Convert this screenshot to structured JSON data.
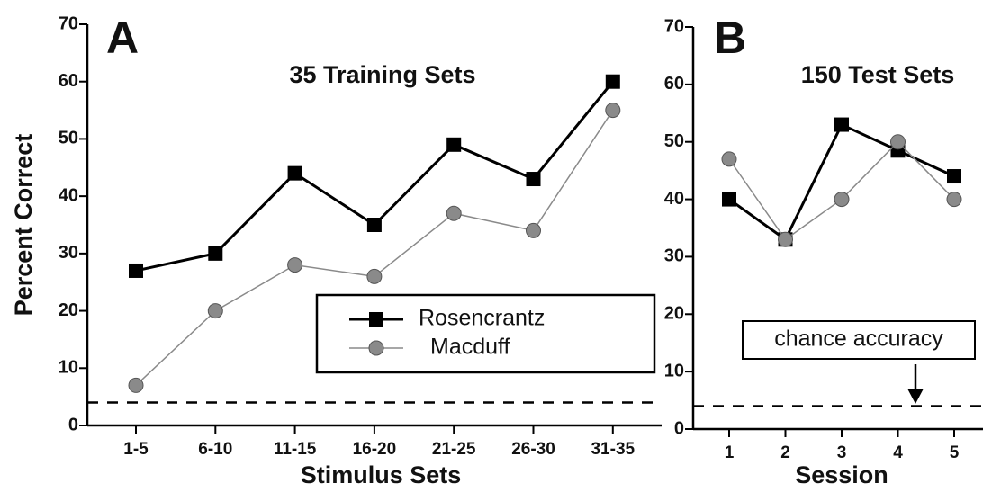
{
  "chart_data": [
    {
      "type": "line",
      "panel": "A",
      "title": "35 Training Sets",
      "ylabel": "Percent Correct",
      "xlabel": "Stimulus Sets",
      "categories": [
        "1-5",
        "6-10",
        "11-15",
        "16-20",
        "21-25",
        "26-30",
        "31-35"
      ],
      "series": [
        {
          "name": "Rosencrantz",
          "color": "#000000",
          "marker": "square",
          "values": [
            27,
            30,
            44,
            35,
            49,
            43,
            60
          ]
        },
        {
          "name": "Macduff",
          "color": "#8a8a8a",
          "marker": "circle",
          "values": [
            7,
            20,
            28,
            26,
            37,
            34,
            55
          ]
        }
      ],
      "ylim": [
        0,
        70
      ],
      "yticks": [
        0,
        10,
        20,
        30,
        40,
        50,
        60,
        70
      ],
      "hline": 4,
      "legend": "lower right"
    },
    {
      "type": "line",
      "panel": "B",
      "title": "150 Test Sets",
      "xlabel": "Session",
      "categories": [
        "1",
        "2",
        "3",
        "4",
        "5"
      ],
      "series": [
        {
          "name": "Rosencrantz",
          "color": "#000000",
          "marker": "square",
          "values": [
            40,
            33,
            53,
            48.5,
            44
          ]
        },
        {
          "name": "Macduff",
          "color": "#8a8a8a",
          "marker": "circle",
          "values": [
            47,
            33,
            40,
            50,
            40
          ]
        }
      ],
      "ylim": [
        0,
        70
      ],
      "yticks": [
        0,
        10,
        20,
        30,
        40,
        50,
        60,
        70
      ],
      "hline": 4,
      "annotation": "chance accuracy"
    }
  ]
}
